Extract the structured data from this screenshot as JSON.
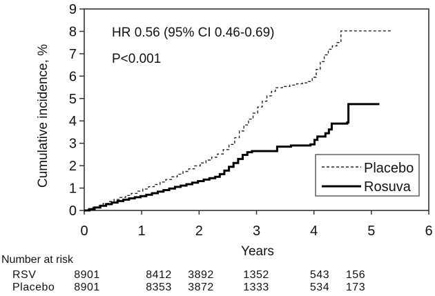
{
  "figure": {
    "annotation_hr": "HR 0.56 (95% CI 0.46-0.69)",
    "annotation_p": "P<0.001",
    "y_axis_label": "Cumulative incidence, %",
    "x_axis_label": "Years"
  },
  "legend": {
    "items": [
      {
        "label": "Placebo",
        "style": "dashed"
      },
      {
        "label": "Rosuva",
        "style": "solid"
      }
    ]
  },
  "risk_table": {
    "title": "Number at risk",
    "rows": [
      {
        "label": "RSV",
        "values": [
          "8901",
          "8412",
          "3892",
          "1352",
          "543",
          "156"
        ]
      },
      {
        "label": "Placebo",
        "values": [
          "8901",
          "8353",
          "3872",
          "1333",
          "534",
          "173"
        ]
      }
    ]
  },
  "colors": {
    "line": "#000000",
    "axis": "#333333",
    "background": "#ffffff"
  },
  "chart_data": {
    "type": "line",
    "subtype": "kaplan-meier-step",
    "title": "",
    "xlabel": "Years",
    "ylabel": "Cumulative incidence, %",
    "xlim": [
      0,
      6
    ],
    "ylim": [
      0,
      9
    ],
    "x_ticks": [
      0,
      1,
      2,
      3,
      4,
      5,
      6
    ],
    "y_ticks": [
      0,
      1,
      2,
      3,
      4,
      5,
      6,
      7,
      8,
      9
    ],
    "grid": false,
    "legend_position": "lower-right",
    "annotations": [
      "HR 0.56 (95% CI 0.46-0.69)",
      "P<0.001"
    ],
    "series": [
      {
        "name": "Placebo",
        "line": "dashed",
        "step": true,
        "points": [
          [
            0.0,
            0.0
          ],
          [
            0.07,
            0.06
          ],
          [
            0.15,
            0.14
          ],
          [
            0.24,
            0.22
          ],
          [
            0.33,
            0.31
          ],
          [
            0.42,
            0.4
          ],
          [
            0.52,
            0.49
          ],
          [
            0.62,
            0.58
          ],
          [
            0.72,
            0.67
          ],
          [
            0.82,
            0.76
          ],
          [
            0.92,
            0.86
          ],
          [
            1.02,
            0.96
          ],
          [
            1.12,
            1.06
          ],
          [
            1.22,
            1.16
          ],
          [
            1.32,
            1.27
          ],
          [
            1.42,
            1.38
          ],
          [
            1.52,
            1.5
          ],
          [
            1.62,
            1.62
          ],
          [
            1.72,
            1.74
          ],
          [
            1.82,
            1.86
          ],
          [
            1.92,
            1.99
          ],
          [
            2.02,
            2.12
          ],
          [
            2.12,
            2.25
          ],
          [
            2.22,
            2.38
          ],
          [
            2.32,
            2.52
          ],
          [
            2.42,
            2.72
          ],
          [
            2.52,
            2.95
          ],
          [
            2.62,
            3.25
          ],
          [
            2.7,
            3.55
          ],
          [
            2.78,
            3.82
          ],
          [
            2.86,
            4.08
          ],
          [
            2.94,
            4.35
          ],
          [
            3.02,
            4.62
          ],
          [
            3.1,
            4.88
          ],
          [
            3.18,
            5.12
          ],
          [
            3.26,
            5.32
          ],
          [
            3.33,
            5.48
          ],
          [
            3.45,
            5.54
          ],
          [
            3.58,
            5.6
          ],
          [
            3.7,
            5.66
          ],
          [
            3.8,
            5.7
          ],
          [
            3.9,
            5.76
          ],
          [
            3.97,
            5.95
          ],
          [
            4.04,
            6.3
          ],
          [
            4.11,
            6.65
          ],
          [
            4.18,
            6.95
          ],
          [
            4.25,
            7.2
          ],
          [
            4.32,
            7.35
          ],
          [
            4.4,
            7.5
          ],
          [
            4.47,
            8.02
          ],
          [
            5.37,
            8.02
          ]
        ]
      },
      {
        "name": "Rosuva",
        "line": "solid",
        "step": true,
        "points": [
          [
            0.0,
            0.0
          ],
          [
            0.09,
            0.06
          ],
          [
            0.18,
            0.13
          ],
          [
            0.28,
            0.21
          ],
          [
            0.38,
            0.28
          ],
          [
            0.48,
            0.35
          ],
          [
            0.58,
            0.42
          ],
          [
            0.68,
            0.48
          ],
          [
            0.78,
            0.54
          ],
          [
            0.88,
            0.59
          ],
          [
            0.98,
            0.64
          ],
          [
            1.08,
            0.7
          ],
          [
            1.18,
            0.77
          ],
          [
            1.28,
            0.84
          ],
          [
            1.38,
            0.91
          ],
          [
            1.48,
            0.98
          ],
          [
            1.58,
            1.05
          ],
          [
            1.68,
            1.11
          ],
          [
            1.78,
            1.17
          ],
          [
            1.88,
            1.24
          ],
          [
            1.98,
            1.31
          ],
          [
            2.08,
            1.38
          ],
          [
            2.18,
            1.44
          ],
          [
            2.28,
            1.5
          ],
          [
            2.36,
            1.62
          ],
          [
            2.44,
            1.78
          ],
          [
            2.52,
            1.95
          ],
          [
            2.6,
            2.12
          ],
          [
            2.68,
            2.3
          ],
          [
            2.76,
            2.48
          ],
          [
            2.84,
            2.6
          ],
          [
            2.92,
            2.65
          ],
          [
            3.36,
            2.85
          ],
          [
            3.6,
            2.9
          ],
          [
            3.94,
            2.95
          ],
          [
            4.01,
            3.15
          ],
          [
            4.06,
            3.3
          ],
          [
            4.2,
            3.45
          ],
          [
            4.26,
            3.62
          ],
          [
            4.31,
            3.88
          ],
          [
            4.58,
            3.93
          ],
          [
            4.6,
            4.75
          ],
          [
            5.14,
            4.75
          ]
        ]
      }
    ],
    "number_at_risk": {
      "title": "Number at risk",
      "rows": [
        {
          "label": "RSV",
          "values": [
            8901,
            8412,
            3892,
            1352,
            543,
            156
          ]
        },
        {
          "label": "Placebo",
          "values": [
            8901,
            8353,
            3872,
            1333,
            534,
            173
          ]
        }
      ]
    }
  }
}
